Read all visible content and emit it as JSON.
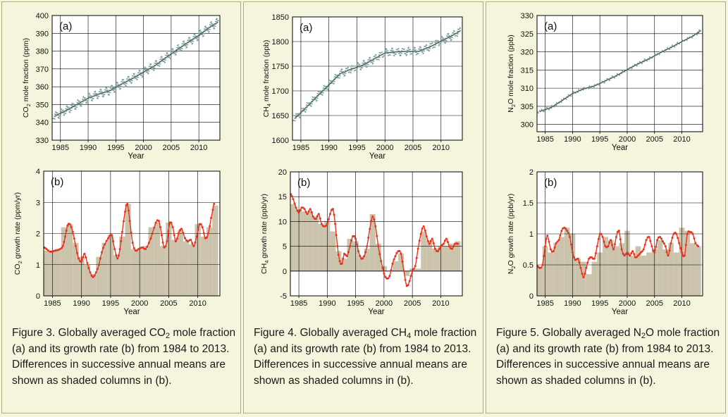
{
  "colors": {
    "background": "#f4f5dc",
    "panel_border": "#a7b27c",
    "mole_fraction_line": "#4c5a5a",
    "mole_fraction_marker": "#7fa3a2",
    "growth_line": "#e8331f",
    "growth_columns": "#cbc3ab",
    "grid": "#000000"
  },
  "captions": [
    {
      "before": "Figure 3. Globally averaged CO",
      "sub": "2",
      "after": " mole fraction (a) and its growth rate (b) from 1984 to 2013. Differences in successive annual means are shown as shaded columns in (b)."
    },
    {
      "before": "Figure 4. Globally averaged CH",
      "sub": "4",
      "after": " mole fraction (a) and its growth rate (b) from 1984 to 2013. Differences in successive annual means are shown as shaded columns in (b)."
    },
    {
      "before": "Figure 5. Globally averaged N",
      "sub": "2",
      "after": "O mole fraction (a) and its growth rate (b) from 1984 to 2013. Differences in successive annual means are shown as shaded columns in (b)."
    }
  ],
  "chart_data": [
    {
      "id": "co2-a",
      "type": "line",
      "panel_label": "(a)",
      "xlabel": "Year",
      "ylabel": {
        "before": "CO",
        "sub": "2",
        "after": " mole fraction (ppm)"
      },
      "xlim": [
        1983.5,
        2013.8
      ],
      "ylim": [
        330,
        400
      ],
      "xticks": [
        1985,
        1990,
        1995,
        2000,
        2005,
        2010
      ],
      "yticks": [
        330,
        340,
        350,
        360,
        370,
        380,
        390,
        400
      ],
      "grid": true,
      "seasonal_amplitude": 2.0,
      "x": [
        1984,
        1986,
        1988,
        1990,
        1992,
        1994,
        1996,
        1998,
        2000,
        2002,
        2004,
        2006,
        2008,
        2010,
        2012,
        2013.5
      ],
      "y": [
        343.6,
        346.6,
        350.1,
        353.6,
        356.0,
        357.9,
        361.4,
        364.6,
        368.2,
        371.7,
        376.2,
        380.6,
        384.8,
        388.8,
        393.5,
        396.3
      ]
    },
    {
      "id": "co2-b",
      "type": "bar",
      "panel_label": "(b)",
      "xlabel": "Year",
      "ylabel": {
        "before": "CO",
        "sub": "2",
        "after": " growth rate (ppm/yr)"
      },
      "xlim": [
        1983.5,
        2013.8
      ],
      "ylim": [
        0,
        4
      ],
      "xticks": [
        1985,
        1990,
        1995,
        2000,
        2005,
        2010
      ],
      "yticks": [
        0,
        1,
        2,
        3,
        4
      ],
      "grid": true,
      "bar_years": [
        1984,
        1985,
        1986,
        1987,
        1988,
        1989,
        1990,
        1991,
        1992,
        1993,
        1994,
        1995,
        1996,
        1997,
        1998,
        1999,
        2000,
        2001,
        2002,
        2003,
        2004,
        2005,
        2006,
        2007,
        2008,
        2009,
        2010,
        2011,
        2012,
        2013
      ],
      "bar_values": [
        1.45,
        1.45,
        1.5,
        2.2,
        2.3,
        1.7,
        1.25,
        1.0,
        0.7,
        1.25,
        1.7,
        1.95,
        1.3,
        1.9,
        2.95,
        1.5,
        1.5,
        1.6,
        2.2,
        2.35,
        1.6,
        2.35,
        1.8,
        2.1,
        1.75,
        1.65,
        2.3,
        1.9,
        2.2,
        2.9
      ],
      "x": [
        1983.6,
        1984.0,
        1984.6,
        1985.5,
        1986.3,
        1986.8,
        1987.2,
        1987.6,
        1988.0,
        1988.5,
        1989.0,
        1989.5,
        1990.0,
        1990.5,
        1991.0,
        1991.5,
        1992.0,
        1992.5,
        1993.0,
        1993.5,
        1994.0,
        1994.6,
        1995.2,
        1995.7,
        1996.2,
        1996.6,
        1997.0,
        1997.5,
        1997.9,
        1998.3,
        1998.8,
        1999.3,
        1999.8,
        2000.5,
        2001.0,
        2001.6,
        2002.2,
        2002.8,
        2003.3,
        2003.8,
        2004.2,
        2004.7,
        2005.2,
        2005.7,
        2006.2,
        2006.7,
        2007.2,
        2007.8,
        2008.3,
        2008.8,
        2009.3,
        2009.8,
        2010.3,
        2010.8,
        2011.3,
        2011.8,
        2012.3,
        2012.8
      ],
      "y": [
        1.55,
        1.5,
        1.42,
        1.45,
        1.5,
        1.6,
        1.9,
        2.25,
        2.3,
        2.05,
        1.6,
        1.2,
        1.1,
        1.35,
        1.05,
        0.75,
        0.6,
        0.75,
        1.0,
        1.4,
        1.65,
        1.85,
        1.95,
        1.5,
        1.2,
        1.5,
        2.05,
        2.7,
        2.95,
        2.4,
        1.7,
        1.45,
        1.5,
        1.55,
        1.5,
        1.7,
        2.0,
        2.35,
        2.4,
        1.95,
        1.55,
        1.75,
        2.35,
        2.2,
        1.75,
        2.0,
        2.15,
        1.85,
        1.75,
        1.8,
        1.6,
        1.9,
        2.3,
        2.2,
        1.85,
        2.0,
        2.5,
        2.95
      ]
    },
    {
      "id": "ch4-a",
      "type": "line",
      "panel_label": "(a)",
      "xlabel": "Year",
      "ylabel": {
        "before": "CH",
        "sub": "4",
        "after": " mole fraction (ppb)"
      },
      "xlim": [
        1983.5,
        2013.8
      ],
      "ylim": [
        1600,
        1850
      ],
      "xticks": [
        1985,
        1990,
        1995,
        2000,
        2005,
        2010
      ],
      "yticks": [
        1600,
        1650,
        1700,
        1750,
        1800,
        1850
      ],
      "grid": true,
      "seasonal_amplitude": 7,
      "x": [
        1984,
        1986,
        1988,
        1990,
        1992,
        1994,
        1996,
        1998,
        2000,
        2002,
        2004,
        2006,
        2008,
        2010,
        2012,
        2013.5
      ],
      "y": [
        1645,
        1667,
        1690,
        1712,
        1735,
        1744,
        1752,
        1764,
        1777,
        1779,
        1780,
        1780,
        1789,
        1801,
        1812,
        1822
      ]
    },
    {
      "id": "ch4-b",
      "type": "bar",
      "panel_label": "(b)",
      "xlabel": "Year",
      "ylabel": {
        "before": "CH",
        "sub": "4",
        "after": " growth rate (ppb/yr)"
      },
      "xlim": [
        1983.5,
        2013.8
      ],
      "ylim": [
        -5,
        20
      ],
      "xticks": [
        1985,
        1990,
        1995,
        2000,
        2005,
        2010
      ],
      "yticks": [
        -5,
        0,
        5,
        10,
        15,
        20
      ],
      "grid": true,
      "bar_years": [
        1984,
        1985,
        1986,
        1987,
        1988,
        1989,
        1990,
        1991,
        1992,
        1993,
        1994,
        1995,
        1996,
        1997,
        1998,
        1999,
        2000,
        2001,
        2002,
        2003,
        2004,
        2005,
        2006,
        2007,
        2008,
        2009,
        2010,
        2011,
        2012,
        2013
      ],
      "bar_values": [
        13.5,
        12.5,
        12.0,
        12.0,
        11.0,
        9.5,
        10.0,
        8.0,
        4.0,
        2.5,
        6.5,
        6.0,
        3.0,
        4.5,
        11.5,
        5.5,
        1.0,
        0.0,
        2.0,
        3.5,
        -1.0,
        0.5,
        0.5,
        8.0,
        6.0,
        4.5,
        5.0,
        5.0,
        5.5,
        6.0
      ],
      "x": [
        1983.6,
        1984.0,
        1984.5,
        1985.0,
        1985.5,
        1986.0,
        1986.5,
        1987.0,
        1987.5,
        1988.0,
        1988.5,
        1989.0,
        1989.5,
        1990.0,
        1990.5,
        1991.0,
        1991.4,
        1991.8,
        1992.2,
        1992.6,
        1993.0,
        1993.5,
        1994.0,
        1994.5,
        1995.0,
        1995.5,
        1996.0,
        1996.5,
        1997.0,
        1997.5,
        1998.0,
        1998.5,
        1999.0,
        1999.5,
        2000.0,
        2000.5,
        2001.0,
        2001.5,
        2002.0,
        2002.5,
        2003.0,
        2003.5,
        2004.0,
        2004.5,
        2005.0,
        2005.5,
        2006.0,
        2006.5,
        2007.0,
        2007.5,
        2008.0,
        2008.5,
        2009.0,
        2009.5,
        2010.0,
        2010.5,
        2011.0,
        2011.5,
        2012.0,
        2012.5,
        2013.0
      ],
      "y": [
        15.5,
        14.5,
        12.8,
        11.8,
        12.8,
        12.5,
        11.5,
        12.5,
        11.0,
        10.5,
        11.5,
        9.5,
        9.0,
        9.5,
        11.5,
        12.5,
        9.5,
        5.0,
        2.0,
        1.5,
        3.5,
        3.0,
        5.0,
        7.0,
        6.5,
        4.0,
        2.5,
        3.0,
        5.0,
        8.5,
        11.0,
        9.0,
        5.0,
        2.0,
        -0.5,
        -1.5,
        -1.0,
        1.5,
        3.0,
        4.0,
        3.5,
        0.0,
        -3.0,
        -2.0,
        0.0,
        1.0,
        4.5,
        7.5,
        9.0,
        7.0,
        5.5,
        6.5,
        4.5,
        4.0,
        5.0,
        5.5,
        6.5,
        5.0,
        4.5,
        5.5,
        5.5
      ]
    },
    {
      "id": "n2o-a",
      "type": "line",
      "panel_label": "(a)",
      "xlabel": "Year",
      "ylabel": {
        "before": "N",
        "sub": "2",
        "after": "O mole fraction (ppb)"
      },
      "xlim": [
        1983.5,
        2013.8
      ],
      "ylim": [
        298,
        330
      ],
      "xticks": [
        1985,
        1990,
        1995,
        2000,
        2005,
        2010
      ],
      "yticks": [
        300,
        305,
        310,
        315,
        320,
        325,
        330
      ],
      "grid": true,
      "seasonal_amplitude": 0.25,
      "x": [
        1984,
        1986,
        1988,
        1990,
        1992,
        1994,
        1996,
        1998,
        2000,
        2002,
        2004,
        2006,
        2008,
        2010,
        2012,
        2013.5
      ],
      "y": [
        303.6,
        304.6,
        306.5,
        308.5,
        309.8,
        310.6,
        312.0,
        313.4,
        315.1,
        316.7,
        318.1,
        319.7,
        321.2,
        322.8,
        324.3,
        325.9
      ]
    },
    {
      "id": "n2o-b",
      "type": "bar",
      "panel_label": "(b)",
      "xlabel": "Year",
      "ylabel": {
        "before": "N",
        "sub": "2",
        "after": "O growth rate (ppb/yr)"
      },
      "xlim": [
        1983.5,
        2013.8
      ],
      "ylim": [
        0,
        2
      ],
      "xticks": [
        1985,
        1990,
        1995,
        2000,
        2005,
        2010
      ],
      "yticks": [
        0,
        0.5,
        1,
        1.5,
        2
      ],
      "yticklabels": [
        "0",
        "0.5",
        "1",
        "1.5",
        "2"
      ],
      "grid": true,
      "bar_years": [
        1984,
        1985,
        1986,
        1987,
        1988,
        1989,
        1990,
        1991,
        1992,
        1993,
        1994,
        1995,
        1996,
        1997,
        1998,
        1999,
        2000,
        2001,
        2002,
        2003,
        2004,
        2005,
        2006,
        2007,
        2008,
        2009,
        2010,
        2011,
        2012,
        2013
      ],
      "bar_values": [
        0.45,
        0.8,
        0.7,
        0.85,
        0.95,
        1.1,
        1.0,
        0.6,
        0.55,
        0.35,
        0.55,
        0.7,
        0.95,
        0.9,
        0.8,
        0.85,
        1.05,
        0.65,
        0.8,
        0.65,
        0.7,
        0.75,
        0.9,
        0.75,
        0.85,
        0.7,
        1.1,
        1.05,
        0.85,
        0.8
      ],
      "x": [
        1983.6,
        1984.0,
        1984.5,
        1985.0,
        1985.4,
        1986.0,
        1986.5,
        1987.0,
        1987.5,
        1988.0,
        1988.5,
        1989.0,
        1989.5,
        1990.0,
        1990.5,
        1991.0,
        1991.5,
        1992.0,
        1992.5,
        1993.0,
        1993.5,
        1994.0,
        1994.5,
        1995.0,
        1995.5,
        1996.0,
        1996.5,
        1997.0,
        1997.5,
        1998.0,
        1998.5,
        1999.0,
        1999.5,
        2000.0,
        2000.5,
        2001.0,
        2001.5,
        2002.0,
        2002.5,
        2003.0,
        2003.5,
        2004.0,
        2004.5,
        2005.0,
        2005.5,
        2006.0,
        2006.5,
        2007.0,
        2007.5,
        2008.0,
        2008.5,
        2009.0,
        2009.5,
        2010.0,
        2010.5,
        2011.0,
        2011.5,
        2012.0,
        2012.5,
        2013.0
      ],
      "y": [
        0.48,
        0.45,
        0.5,
        0.8,
        0.97,
        0.75,
        0.72,
        0.85,
        0.9,
        1.05,
        1.1,
        1.05,
        0.95,
        0.7,
        0.58,
        0.6,
        0.45,
        0.3,
        0.45,
        0.6,
        0.62,
        0.6,
        0.8,
        1.0,
        0.95,
        0.8,
        0.8,
        0.9,
        0.75,
        0.95,
        1.05,
        0.75,
        0.65,
        0.7,
        0.65,
        0.72,
        0.62,
        0.65,
        0.7,
        0.75,
        0.9,
        0.95,
        0.8,
        0.7,
        0.9,
        0.95,
        0.88,
        0.8,
        0.65,
        0.85,
        1.0,
        1.0,
        0.85,
        0.7,
        0.65,
        1.0,
        1.03,
        1.0,
        0.85,
        0.8
      ]
    }
  ]
}
